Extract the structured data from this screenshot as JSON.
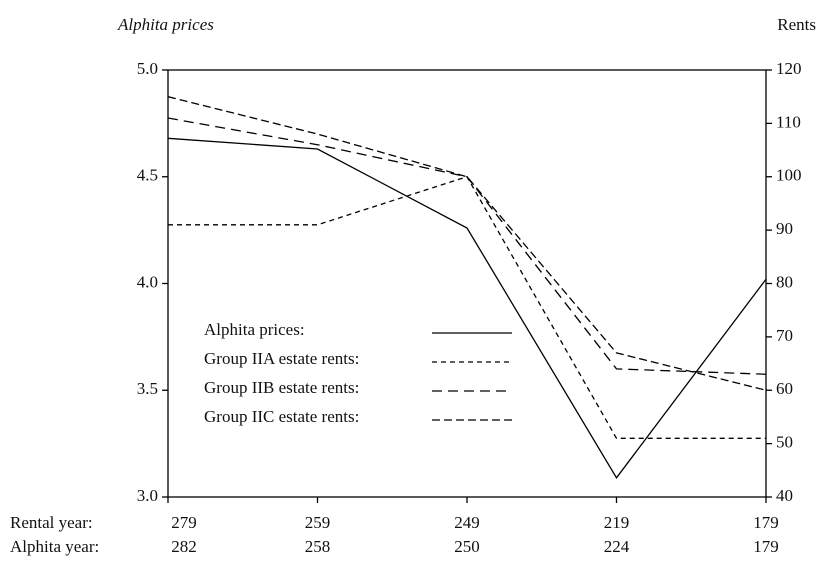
{
  "chart_data": {
    "type": "line",
    "ylabel": "Alphita prices",
    "y2label": "Rents",
    "category_rows": [
      {
        "label": "Rental year:",
        "categories": [
          "279",
          "259",
          "249",
          "219",
          "179"
        ]
      },
      {
        "label": "Alphita year:",
        "categories": [
          "282",
          "258",
          "250",
          "224",
          "179"
        ]
      }
    ],
    "series": [
      {
        "name": "Alphita prices:",
        "color": "#000000",
        "dash": "none",
        "values": [
          4.68,
          4.63,
          4.26,
          3.09,
          4.02
        ]
      },
      {
        "name": "Group IIA estate rents:",
        "color": "#000000",
        "dash": "5 4",
        "axis": "y2",
        "values": [
          91,
          91,
          100,
          51,
          51
        ]
      },
      {
        "name": "Group IIB estate rents:",
        "color": "#000000",
        "dash": "10 6",
        "axis": "y2",
        "values": [
          111,
          106,
          100,
          64,
          63
        ]
      },
      {
        "name": "Group IIC estate rents:",
        "color": "#000000",
        "dash": "8 4",
        "axis": "y2",
        "values": [
          115,
          108,
          100,
          67,
          60
        ]
      }
    ],
    "ylim": [
      3,
      5
    ],
    "yticks": [
      {
        "value": 3,
        "label": "3.0"
      },
      {
        "value": 3.5,
        "label": "3.5"
      },
      {
        "value": 4,
        "label": "4.0"
      },
      {
        "value": 4.5,
        "label": "4.5"
      },
      {
        "value": 5,
        "label": "5.0"
      }
    ],
    "y2lim": [
      40,
      120
    ],
    "y2ticks": [
      40,
      50,
      60,
      70,
      80,
      90,
      100,
      110,
      120
    ],
    "grid": false,
    "legend": "lower left"
  }
}
